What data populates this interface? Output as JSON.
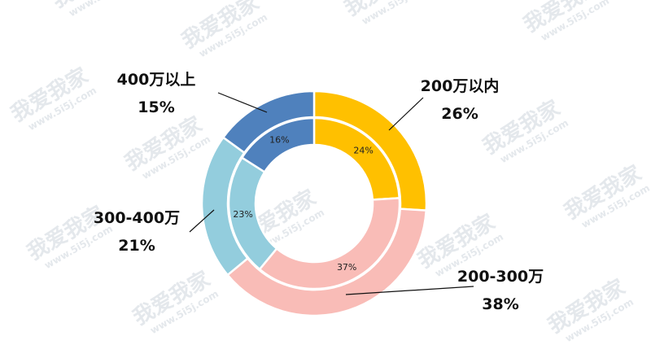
{
  "chart_data": {
    "type": "pie",
    "categories": [
      "200万以内",
      "200-300万",
      "300-400万",
      "400万以上"
    ],
    "colors": [
      "#FFC000",
      "#F9BCB7",
      "#93CDDD",
      "#4F81BD"
    ],
    "series": [
      {
        "values": [
          26,
          38,
          21,
          15
        ],
        "value_labels": [
          "26%",
          "38%",
          "21%",
          "15%"
        ]
      },
      {
        "values": [
          24,
          37,
          23,
          16
        ],
        "value_labels": [
          "24%",
          "37%",
          "23%",
          "16%"
        ]
      }
    ],
    "watermark": {
      "brand": "我爱我家",
      "url": "www.5i5j.com"
    }
  }
}
